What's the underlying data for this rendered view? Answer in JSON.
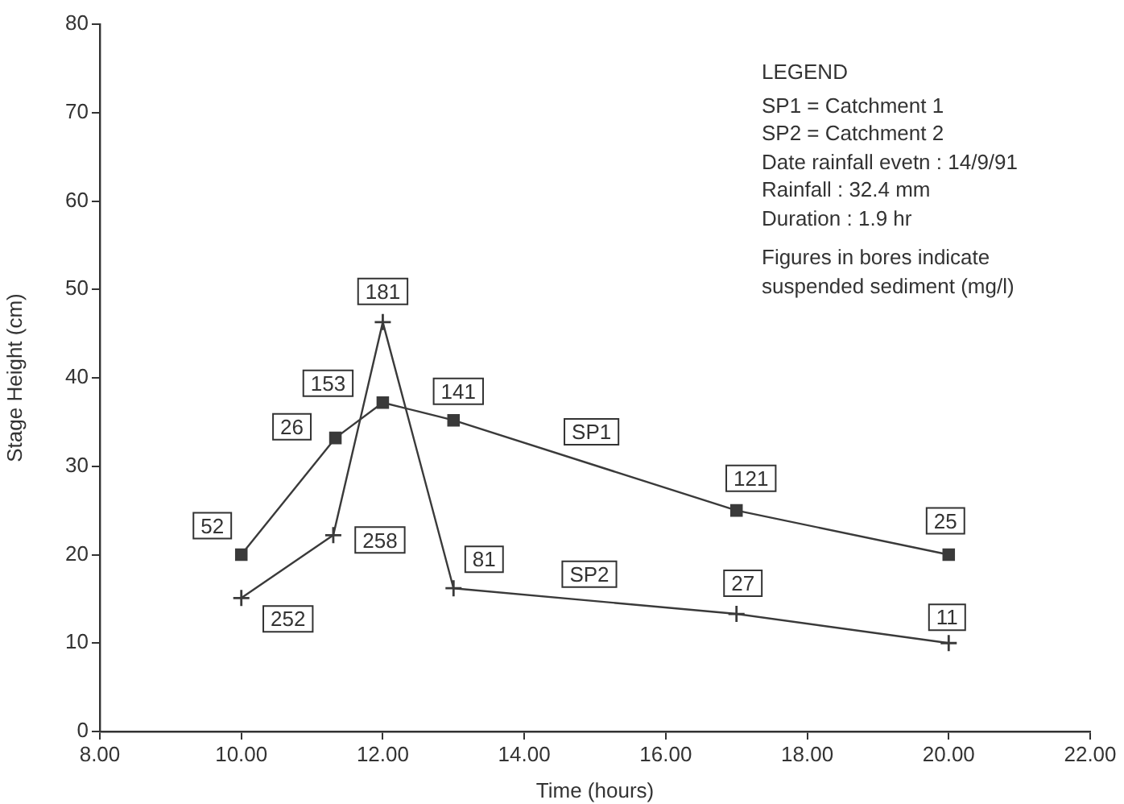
{
  "chart_data": {
    "type": "line",
    "xlabel": "Time (hours)",
    "ylabel": "Stage Height (cm)",
    "xlim": [
      8,
      22
    ],
    "xticks": [
      {
        "value": 8,
        "label": "8.00"
      },
      {
        "value": 10,
        "label": "10.00"
      },
      {
        "value": 12,
        "label": "12.00"
      },
      {
        "value": 14,
        "label": "14.00"
      },
      {
        "value": 16,
        "label": "16.00"
      },
      {
        "value": 18,
        "label": "18.00"
      },
      {
        "value": 20,
        "label": "20.00"
      },
      {
        "value": 22,
        "label": "22.00"
      }
    ],
    "ylim": [
      0,
      80
    ],
    "yticks": [
      0,
      10,
      20,
      30,
      40,
      50,
      60,
      70,
      80
    ],
    "grid": false,
    "legend": false,
    "series": [
      {
        "name": "SP1",
        "color": "#3a3a3a",
        "marker": "square",
        "x": [
          10,
          11.33,
          12,
          13,
          17,
          20
        ],
        "values": [
          20,
          33.2,
          37.2,
          35.2,
          25,
          20
        ]
      },
      {
        "name": "SP2",
        "color": "#3a3a3a",
        "marker": "cross",
        "x": [
          10,
          11.3,
          12,
          13,
          17,
          20
        ],
        "values": [
          15.1,
          22.2,
          46.3,
          16.2,
          13.3,
          10
        ]
      }
    ],
    "annotations": [
      "LEGEND",
      "SP1 = Catchment 1",
      "SP2 = Catchment 2",
      "Date rainfall evetn : 14/9/91",
      "Rainfall : 32.4 mm",
      "Duration : 1.9 hr",
      "Figures in bores indicate suspended sediment (mg/l)",
      {
        "text": "52",
        "x": 10,
        "y": 20
      },
      {
        "text": "26",
        "x": 11.33,
        "y": 33.2
      },
      {
        "text": "153",
        "x": 12,
        "y": 37.2
      },
      {
        "text": "141",
        "x": 13,
        "y": 35.2
      },
      {
        "text": "121",
        "x": 17,
        "y": 25
      },
      {
        "text": "25",
        "x": 20,
        "y": 20
      },
      {
        "text": "252",
        "x": 10,
        "y": 15.1
      },
      {
        "text": "258",
        "x": 11.3,
        "y": 22.2
      },
      {
        "text": "181",
        "x": 12,
        "y": 46.3
      },
      {
        "text": "81",
        "x": 13,
        "y": 16.2
      },
      {
        "text": "27",
        "x": 17,
        "y": 13.3
      },
      {
        "text": "11",
        "x": 20,
        "y": 10
      }
    ]
  }
}
